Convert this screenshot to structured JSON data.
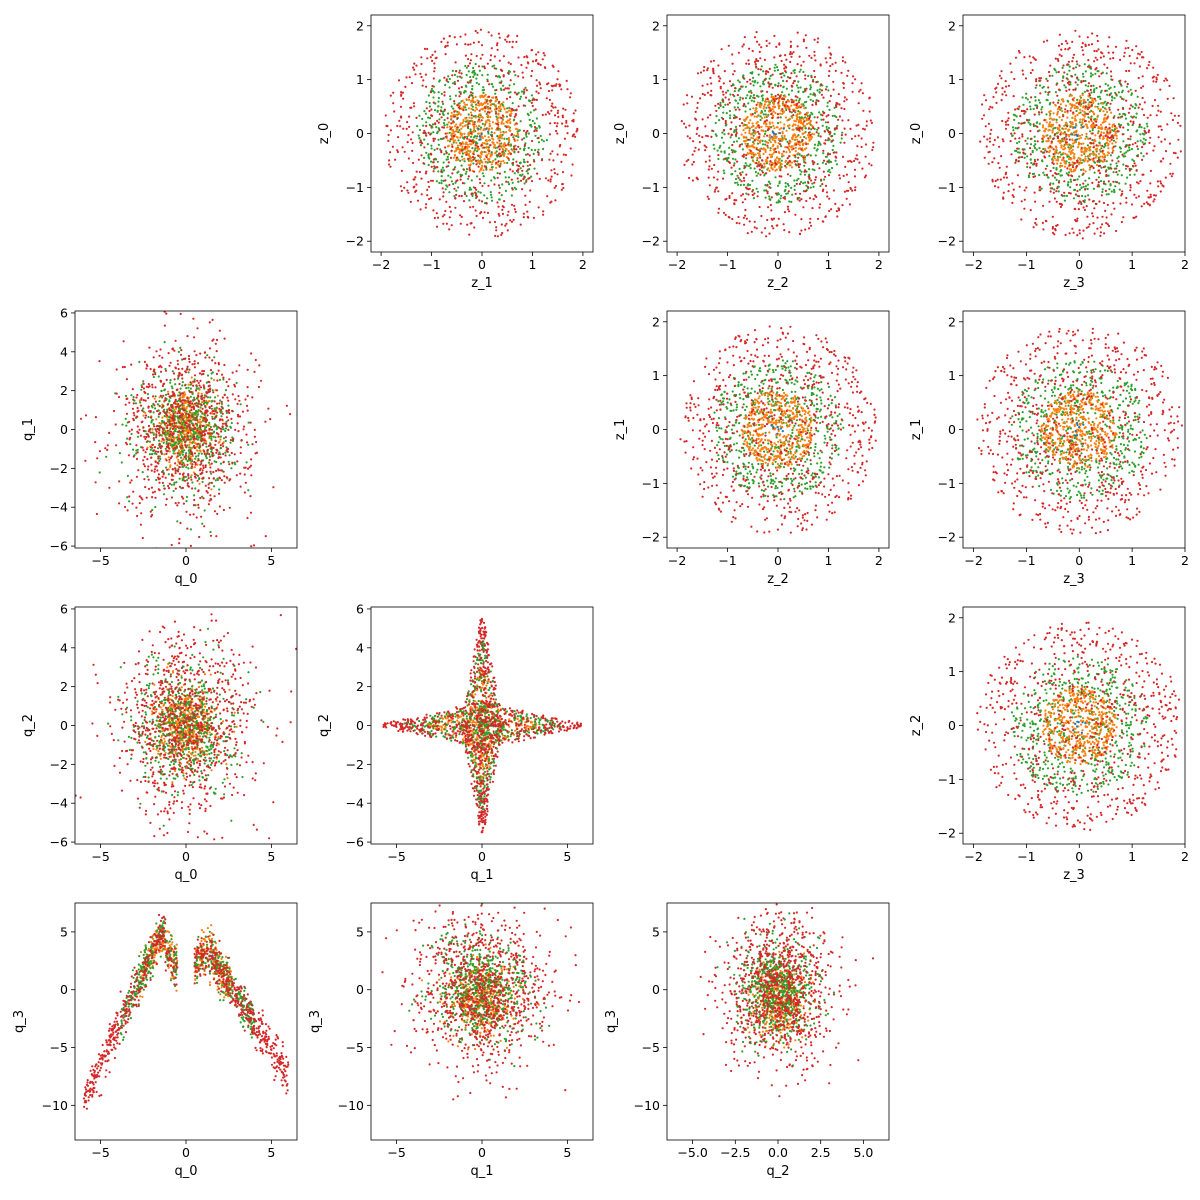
{
  "chart_data": [
    {
      "type": "scatter",
      "xlabel": "z_1",
      "ylabel": "z_0",
      "xlim": [
        -2.2,
        2.2
      ],
      "ylim": [
        -2.2,
        2.2
      ],
      "xticks": [
        -2,
        -1,
        0,
        1,
        2
      ],
      "yticks": [
        -2,
        -1,
        0,
        1,
        2
      ]
    },
    {
      "type": "scatter",
      "xlabel": "z_2",
      "ylabel": "z_0",
      "xlim": [
        -2.2,
        2.2
      ],
      "ylim": [
        -2.2,
        2.2
      ],
      "xticks": [
        -2,
        -1,
        0,
        1,
        2
      ],
      "yticks": [
        -2,
        -1,
        0,
        1,
        2
      ]
    },
    {
      "type": "scatter",
      "xlabel": "z_3",
      "ylabel": "z_0",
      "xlim": [
        -2.2,
        2.0
      ],
      "ylim": [
        -2.2,
        2.2
      ],
      "xticks": [
        -2,
        -1,
        0,
        1,
        2
      ],
      "yticks": [
        -2,
        -1,
        0,
        1,
        2
      ]
    },
    {
      "type": "scatter",
      "xlabel": "q_0",
      "ylabel": "q_1",
      "xlim": [
        -6.5,
        6.5
      ],
      "ylim": [
        -6.1,
        6.1
      ],
      "xticks": [
        -5,
        0,
        5
      ],
      "yticks": [
        -6,
        -4,
        -2,
        0,
        2,
        4,
        6
      ]
    },
    {
      "type": "scatter",
      "xlabel": "z_2",
      "ylabel": "z_1",
      "xlim": [
        -2.2,
        2.2
      ],
      "ylim": [
        -2.2,
        2.2
      ],
      "xticks": [
        -2,
        -1,
        0,
        1,
        2
      ],
      "yticks": [
        -2,
        -1,
        0,
        1,
        2
      ]
    },
    {
      "type": "scatter",
      "xlabel": "z_3",
      "ylabel": "z_1",
      "xlim": [
        -2.2,
        2.0
      ],
      "ylim": [
        -2.2,
        2.2
      ],
      "xticks": [
        -2,
        -1,
        0,
        1,
        2
      ],
      "yticks": [
        -2,
        -1,
        0,
        1,
        2
      ]
    },
    {
      "type": "scatter",
      "xlabel": "q_0",
      "ylabel": "q_2",
      "xlim": [
        -6.5,
        6.5
      ],
      "ylim": [
        -6.1,
        6.1
      ],
      "xticks": [
        -5,
        0,
        5
      ],
      "yticks": [
        -6,
        -4,
        -2,
        0,
        2,
        4,
        6
      ]
    },
    {
      "type": "scatter",
      "xlabel": "q_1",
      "ylabel": "q_2",
      "xlim": [
        -6.5,
        6.5
      ],
      "ylim": [
        -6.1,
        6.1
      ],
      "xticks": [
        -5,
        0,
        5
      ],
      "yticks": [
        -6,
        -4,
        -2,
        0,
        2,
        4,
        6
      ]
    },
    {
      "type": "scatter",
      "xlabel": "z_3",
      "ylabel": "z_2",
      "xlim": [
        -2.2,
        2.0
      ],
      "ylim": [
        -2.2,
        2.2
      ],
      "xticks": [
        -2,
        -1,
        0,
        1,
        2
      ],
      "yticks": [
        -2,
        -1,
        0,
        1,
        2
      ]
    },
    {
      "type": "scatter",
      "xlabel": "q_0",
      "ylabel": "q_3",
      "xlim": [
        -6.5,
        6.5
      ],
      "ylim": [
        -13,
        7.5
      ],
      "xticks": [
        -5,
        0,
        5
      ],
      "yticks": [
        -10,
        -5,
        0,
        5
      ]
    },
    {
      "type": "scatter",
      "xlabel": "q_1",
      "ylabel": "q_3",
      "xlim": [
        -6.5,
        6.5
      ],
      "ylim": [
        -13,
        7.5
      ],
      "xticks": [
        -5,
        0,
        5
      ],
      "yticks": [
        -10,
        -5,
        0,
        5
      ]
    },
    {
      "type": "scatter",
      "xlabel": "q_2",
      "ylabel": "q_3",
      "xlim": [
        -6.5,
        6.5
      ],
      "ylim": [
        -13,
        7.5
      ],
      "xticks": [
        -5.0,
        -2.5,
        0.0,
        2.5,
        5.0
      ],
      "xtick_labels": [
        "−5.0",
        "−2.5",
        "0.0",
        "2.5",
        "5.0"
      ],
      "yticks": [
        -10,
        -5,
        0,
        5
      ]
    }
  ],
  "series_colors": [
    "#d62728",
    "#2ca02c",
    "#ff7f0e",
    "#1f77b4"
  ],
  "grid": false
}
